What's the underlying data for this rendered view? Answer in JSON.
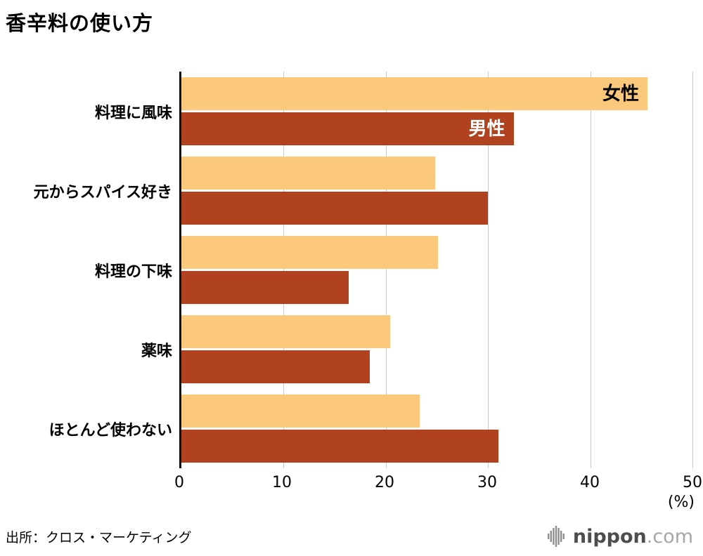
{
  "title": "香辛料の使い方",
  "source": "出所：クロス・マーケティング",
  "logo": {
    "brand": "nippon",
    "suffix": ".com"
  },
  "chart_data": {
    "type": "bar",
    "orientation": "horizontal",
    "title": "香辛料の使い方",
    "categories": [
      "料理に風味",
      "元からスパイス好き",
      "料理の下味",
      "薬味",
      "ほとんど使わない"
    ],
    "series": [
      {
        "name": "女性",
        "color": "#FBC87C",
        "values": [
          45.6,
          24.8,
          25.1,
          20.4,
          23.3
        ]
      },
      {
        "name": "男性",
        "color": "#B0421F",
        "values": [
          32.5,
          30.0,
          16.4,
          18.4,
          31.0
        ]
      }
    ],
    "xlim": [
      0,
      50
    ],
    "ticks": [
      0,
      10,
      20,
      30,
      40,
      50
    ],
    "unit_label": "(%)",
    "grid": "vertical-gridlines",
    "legend": "labels-inside-first-bars"
  }
}
